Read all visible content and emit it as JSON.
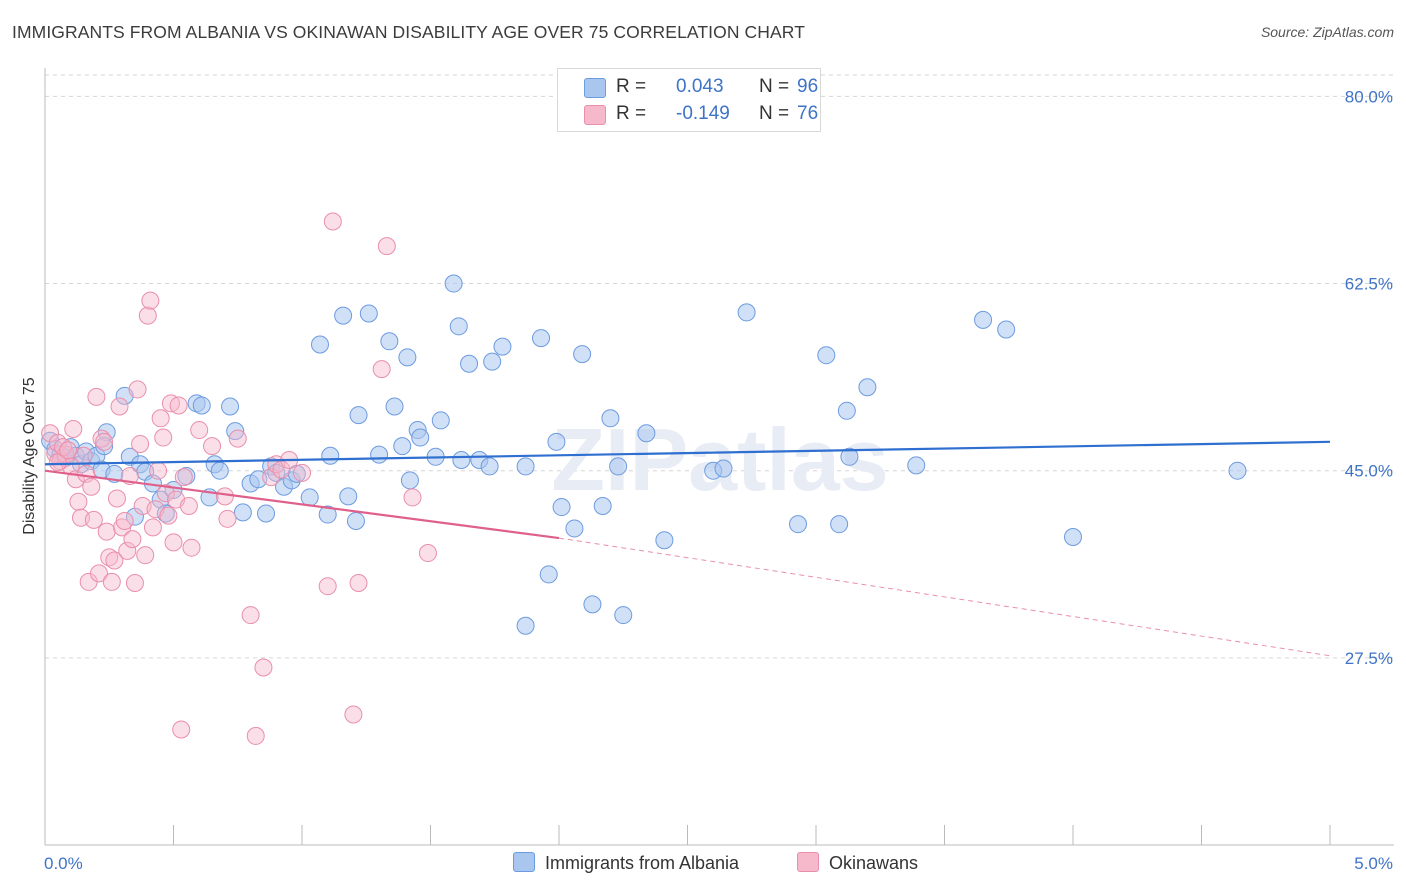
{
  "title": "IMMIGRANTS FROM ALBANIA VS OKINAWAN DISABILITY AGE OVER 75 CORRELATION CHART",
  "source": "Source: ZipAtlas.com",
  "watermark": "ZIPatlas",
  "legend": {
    "rows": [
      {
        "r_label": "R =",
        "r_value": "0.043",
        "n_label": "N =",
        "n_value": "96"
      },
      {
        "r_label": "R =",
        "r_value": "-0.149",
        "n_label": "N =",
        "n_value": "76"
      }
    ]
  },
  "bottom_legend": {
    "series1": "Immigrants from Albania",
    "series2": "Okinawans"
  },
  "colors": {
    "series1_fill": "#a9c6ee",
    "series1_stroke": "#6d9be0",
    "series1_line": "#2f6fd0",
    "series2_fill": "#f6b9cc",
    "series2_stroke": "#e98fab",
    "series2_line": "#e0608c",
    "tick_text": "#3f73c6",
    "grid": "#d6d6d6"
  },
  "chart_data": {
    "type": "scatter",
    "title": "IMMIGRANTS FROM ALBANIA VS OKINAWAN DISABILITY AGE OVER 75 CORRELATION CHART",
    "xlabel": "",
    "ylabel": "Disability Age Over 75",
    "xlim": [
      0.0,
      5.0
    ],
    "ylim": [
      10.0,
      82.0
    ],
    "x_tick_labels": [
      "0.0%",
      "5.0%"
    ],
    "y_ticks": [
      27.5,
      45.0,
      62.5,
      80.0
    ],
    "y_tick_labels": [
      "27.5%",
      "45.0%",
      "62.5%",
      "80.0%"
    ],
    "grid": true,
    "legend_position": "top-center",
    "series": [
      {
        "name": "Immigrants from Albania",
        "R": 0.043,
        "N": 96,
        "trend": {
          "x": [
            0.0,
            5.0
          ],
          "y": [
            45.6,
            47.7
          ]
        },
        "points": [
          [
            0.02,
            47.8
          ],
          [
            0.04,
            47.0
          ],
          [
            0.06,
            46.5
          ],
          [
            0.08,
            46.2
          ],
          [
            0.1,
            47.2
          ],
          [
            0.12,
            46.4
          ],
          [
            0.14,
            45.6
          ],
          [
            0.16,
            46.8
          ],
          [
            0.18,
            45.9
          ],
          [
            0.2,
            46.4
          ],
          [
            0.22,
            45.1
          ],
          [
            0.24,
            48.6
          ],
          [
            0.23,
            47.3
          ],
          [
            0.27,
            44.7
          ],
          [
            0.31,
            52.0
          ],
          [
            0.33,
            46.3
          ],
          [
            0.35,
            40.7
          ],
          [
            0.37,
            45.6
          ],
          [
            0.39,
            44.9
          ],
          [
            0.42,
            43.8
          ],
          [
            0.45,
            42.3
          ],
          [
            0.47,
            41.0
          ],
          [
            0.5,
            43.2
          ],
          [
            0.55,
            44.5
          ],
          [
            0.59,
            51.3
          ],
          [
            0.61,
            51.1
          ],
          [
            0.64,
            42.5
          ],
          [
            0.66,
            45.6
          ],
          [
            0.68,
            45.0
          ],
          [
            0.72,
            51.0
          ],
          [
            0.74,
            48.7
          ],
          [
            0.77,
            41.1
          ],
          [
            0.8,
            43.8
          ],
          [
            0.83,
            44.2
          ],
          [
            0.86,
            41.0
          ],
          [
            0.88,
            45.4
          ],
          [
            0.9,
            44.8
          ],
          [
            0.93,
            43.5
          ],
          [
            0.96,
            44.1
          ],
          [
            0.98,
            44.7
          ],
          [
            1.03,
            42.5
          ],
          [
            1.07,
            56.8
          ],
          [
            1.1,
            40.9
          ],
          [
            1.11,
            46.4
          ],
          [
            1.16,
            59.5
          ],
          [
            1.18,
            42.6
          ],
          [
            1.21,
            40.3
          ],
          [
            1.22,
            50.2
          ],
          [
            1.26,
            59.7
          ],
          [
            1.3,
            46.5
          ],
          [
            1.34,
            57.1
          ],
          [
            1.36,
            51.0
          ],
          [
            1.39,
            47.3
          ],
          [
            1.41,
            55.6
          ],
          [
            1.42,
            44.1
          ],
          [
            1.45,
            48.8
          ],
          [
            1.46,
            48.1
          ],
          [
            1.52,
            46.3
          ],
          [
            1.54,
            49.7
          ],
          [
            1.59,
            62.5
          ],
          [
            1.61,
            58.5
          ],
          [
            1.62,
            46.0
          ],
          [
            1.65,
            55.0
          ],
          [
            1.69,
            46.0
          ],
          [
            1.73,
            45.4
          ],
          [
            1.74,
            55.2
          ],
          [
            1.78,
            56.6
          ],
          [
            1.87,
            45.4
          ],
          [
            1.93,
            57.4
          ],
          [
            1.96,
            35.3
          ],
          [
            1.99,
            47.7
          ],
          [
            2.01,
            41.6
          ],
          [
            2.06,
            39.6
          ],
          [
            2.09,
            55.9
          ],
          [
            2.13,
            32.5
          ],
          [
            2.17,
            41.7
          ],
          [
            2.2,
            49.9
          ],
          [
            2.23,
            45.4
          ],
          [
            2.25,
            31.5
          ],
          [
            2.34,
            48.5
          ],
          [
            2.41,
            38.5
          ],
          [
            2.6,
            45.0
          ],
          [
            2.64,
            45.2
          ],
          [
            2.73,
            59.8
          ],
          [
            2.93,
            40.0
          ],
          [
            3.04,
            55.8
          ],
          [
            3.09,
            40.0
          ],
          [
            3.12,
            50.6
          ],
          [
            3.13,
            46.3
          ],
          [
            3.2,
            52.8
          ],
          [
            3.39,
            45.5
          ],
          [
            3.65,
            59.1
          ],
          [
            3.74,
            58.2
          ],
          [
            4.0,
            38.8
          ],
          [
            4.64,
            45.0
          ],
          [
            1.87,
            30.5
          ]
        ]
      },
      {
        "name": "Okinawans",
        "R": -0.149,
        "N": 76,
        "trend": {
          "x": [
            0.0,
            2.0
          ],
          "y": [
            45.0,
            38.7
          ],
          "x_dashed_end": 5.0,
          "y_dashed_end": 27.7
        },
        "points": [
          [
            0.02,
            48.5
          ],
          [
            0.04,
            46.6
          ],
          [
            0.05,
            47.6
          ],
          [
            0.06,
            45.9
          ],
          [
            0.08,
            46.5
          ],
          [
            0.1,
            45.4
          ],
          [
            0.11,
            48.9
          ],
          [
            0.12,
            44.2
          ],
          [
            0.13,
            42.1
          ],
          [
            0.14,
            40.6
          ],
          [
            0.15,
            46.4
          ],
          [
            0.16,
            44.7
          ],
          [
            0.17,
            34.6
          ],
          [
            0.18,
            43.5
          ],
          [
            0.19,
            40.4
          ],
          [
            0.2,
            51.9
          ],
          [
            0.21,
            35.4
          ],
          [
            0.22,
            48.0
          ],
          [
            0.23,
            47.7
          ],
          [
            0.24,
            39.3
          ],
          [
            0.25,
            36.9
          ],
          [
            0.26,
            34.6
          ],
          [
            0.27,
            36.6
          ],
          [
            0.28,
            42.4
          ],
          [
            0.29,
            51.0
          ],
          [
            0.3,
            39.7
          ],
          [
            0.31,
            40.3
          ],
          [
            0.32,
            37.5
          ],
          [
            0.33,
            44.5
          ],
          [
            0.34,
            38.6
          ],
          [
            0.35,
            34.5
          ],
          [
            0.36,
            52.6
          ],
          [
            0.37,
            47.5
          ],
          [
            0.38,
            41.7
          ],
          [
            0.39,
            37.1
          ],
          [
            0.4,
            59.5
          ],
          [
            0.41,
            60.9
          ],
          [
            0.42,
            39.7
          ],
          [
            0.43,
            41.4
          ],
          [
            0.44,
            45.0
          ],
          [
            0.45,
            49.9
          ],
          [
            0.46,
            48.1
          ],
          [
            0.47,
            42.9
          ],
          [
            0.48,
            40.8
          ],
          [
            0.49,
            51.3
          ],
          [
            0.5,
            38.3
          ],
          [
            0.51,
            42.3
          ],
          [
            0.52,
            51.1
          ],
          [
            0.53,
            20.8
          ],
          [
            0.54,
            44.4
          ],
          [
            0.56,
            41.7
          ],
          [
            0.57,
            37.8
          ],
          [
            0.6,
            48.8
          ],
          [
            0.65,
            47.3
          ],
          [
            0.7,
            42.6
          ],
          [
            0.71,
            40.5
          ],
          [
            0.75,
            48.0
          ],
          [
            0.8,
            31.5
          ],
          [
            0.82,
            20.2
          ],
          [
            0.85,
            26.6
          ],
          [
            0.88,
            44.4
          ],
          [
            0.9,
            45.6
          ],
          [
            0.92,
            45.1
          ],
          [
            0.95,
            46.0
          ],
          [
            1.0,
            44.8
          ],
          [
            1.1,
            34.2
          ],
          [
            1.12,
            68.3
          ],
          [
            1.2,
            22.2
          ],
          [
            1.22,
            34.5
          ],
          [
            1.31,
            54.5
          ],
          [
            1.33,
            66.0
          ],
          [
            1.43,
            42.5
          ],
          [
            1.49,
            37.3
          ],
          [
            0.05,
            45.8
          ],
          [
            0.07,
            47.2
          ],
          [
            0.09,
            46.9
          ]
        ]
      }
    ]
  }
}
